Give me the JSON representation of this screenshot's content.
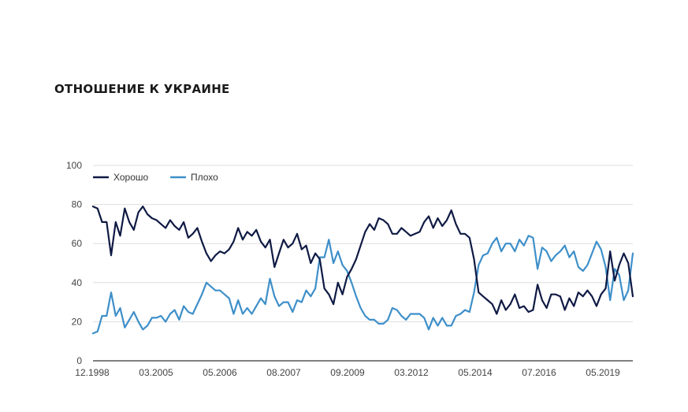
{
  "chart_data": {
    "type": "line",
    "title": "ОТНОШЕНИЕ К УКРАИНЕ",
    "xlabel": "",
    "ylabel": "",
    "ylim": [
      0,
      100
    ],
    "yticks": [
      0,
      20,
      40,
      60,
      80,
      100
    ],
    "xtick_labels": [
      "12.1998",
      "03.2005",
      "05.2006",
      "08.2007",
      "09.2009",
      "03.2012",
      "05.2014",
      "07.2016",
      "05.2019"
    ],
    "grid": true,
    "legend_position": "top-left",
    "series": [
      {
        "name": "Хорошо",
        "color": "#0f1a44",
        "values": [
          79,
          78,
          71,
          71,
          54,
          71,
          64,
          78,
          71,
          67,
          76,
          79,
          75,
          73,
          72,
          70,
          68,
          72,
          69,
          67,
          71,
          63,
          65,
          68,
          61,
          55,
          51,
          54,
          56,
          55,
          57,
          61,
          68,
          62,
          66,
          64,
          67,
          61,
          58,
          62,
          48,
          55,
          62,
          58,
          60,
          65,
          57,
          59,
          50,
          55,
          52,
          37,
          34,
          29,
          40,
          34,
          43,
          47,
          52,
          59,
          66,
          70,
          67,
          73,
          72,
          70,
          65,
          65,
          68,
          66,
          64,
          65,
          66,
          71,
          74,
          68,
          73,
          69,
          72,
          77,
          70,
          65,
          65,
          63,
          52,
          35,
          33,
          31,
          29,
          24,
          31,
          26,
          29,
          34,
          27,
          28,
          25,
          26,
          39,
          31,
          27,
          34,
          34,
          33,
          26,
          32,
          28,
          35,
          33,
          36,
          33,
          28,
          34,
          37,
          56,
          41,
          49,
          55,
          50,
          33
        ]
      },
      {
        "name": "Плохо",
        "color": "#3e8fc9",
        "values": [
          14,
          15,
          23,
          23,
          35,
          23,
          27,
          17,
          21,
          25,
          20,
          16,
          18,
          22,
          22,
          23,
          20,
          24,
          26,
          21,
          28,
          25,
          24,
          29,
          34,
          40,
          38,
          36,
          36,
          34,
          32,
          24,
          31,
          24,
          27,
          24,
          28,
          32,
          29,
          42,
          33,
          28,
          30,
          30,
          25,
          31,
          30,
          36,
          33,
          37,
          53,
          53,
          62,
          50,
          56,
          49,
          46,
          40,
          33,
          27,
          23,
          21,
          21,
          19,
          19,
          21,
          27,
          26,
          23,
          21,
          24,
          24,
          24,
          22,
          16,
          22,
          18,
          22,
          18,
          18,
          23,
          24,
          26,
          25,
          35,
          49,
          54,
          55,
          60,
          63,
          56,
          60,
          60,
          56,
          62,
          59,
          64,
          63,
          47,
          58,
          56,
          51,
          54,
          56,
          59,
          53,
          56,
          48,
          46,
          49,
          55,
          61,
          57,
          48,
          31,
          47,
          44,
          31,
          36,
          55
        ]
      }
    ]
  }
}
